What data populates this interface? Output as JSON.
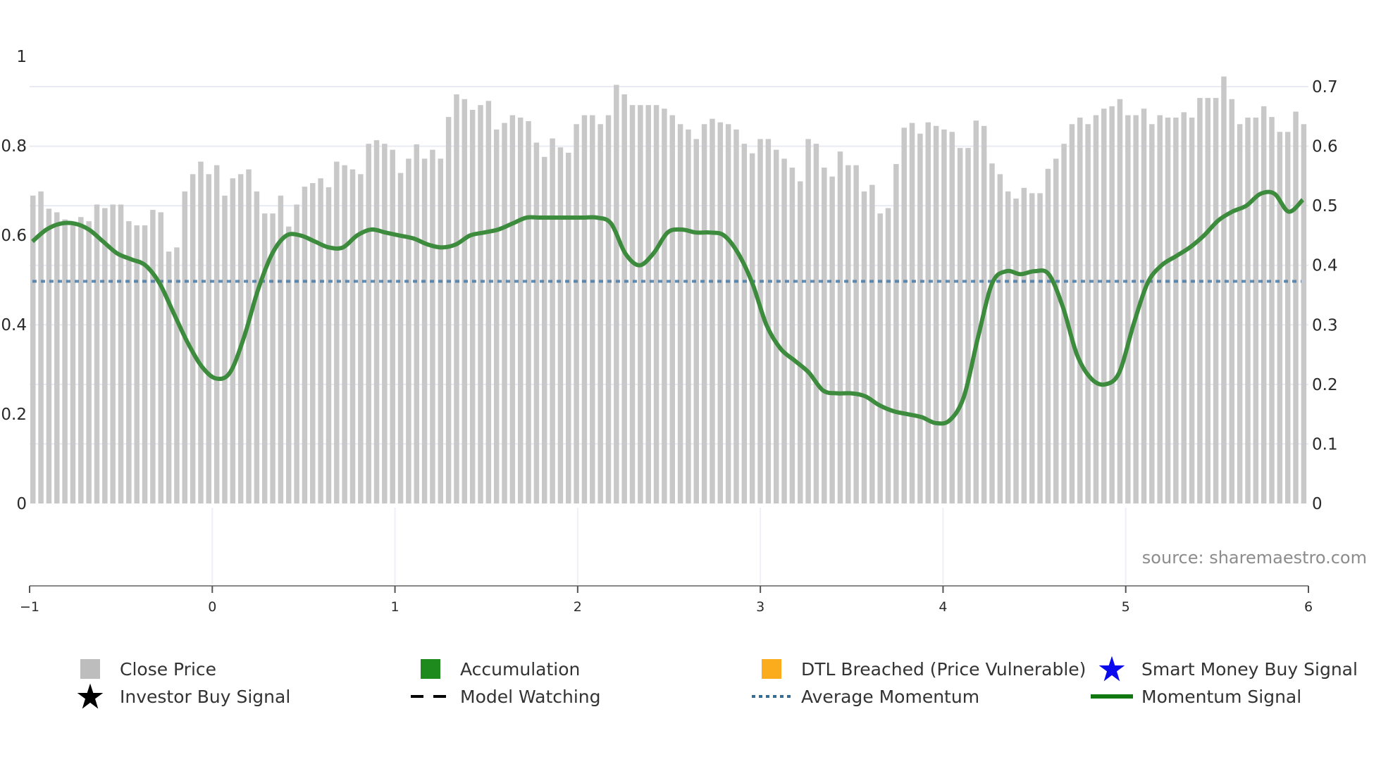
{
  "chart_data": {
    "type": "bar",
    "title": "",
    "xlabel": "",
    "ylabel_left": "",
    "ylabel_right": "",
    "x_ticks": [
      "-1",
      "0",
      "1",
      "2",
      "3",
      "4",
      "5",
      "6"
    ],
    "x_range": [
      -1,
      6
    ],
    "left_y_ticks": [
      "0",
      "0.2",
      "0.4",
      "0.6",
      "0.8",
      "1"
    ],
    "left_y_range": [
      0,
      1
    ],
    "right_y_ticks": [
      "0",
      "0.1",
      "0.2",
      "0.3",
      "0.4",
      "0.5",
      "0.6",
      "0.7"
    ],
    "right_y_range": [
      0,
      0.7
    ],
    "grid": true,
    "legend_position": "bottom",
    "annotation": "source: sharemaestro.com",
    "series": [
      {
        "name": "Close Price",
        "type": "bar",
        "axis": "right",
        "color": "#bdbdbd",
        "values": [
          0.517,
          0.524,
          0.495,
          0.489,
          0.477,
          0.467,
          0.481,
          0.474,
          0.502,
          0.496,
          0.502,
          0.502,
          0.474,
          0.467,
          0.467,
          0.493,
          0.489,
          0.423,
          0.43,
          0.524,
          0.553,
          0.574,
          0.553,
          0.568,
          0.517,
          0.546,
          0.553,
          0.561,
          0.524,
          0.487,
          0.487,
          0.517,
          0.465,
          0.502,
          0.532,
          0.538,
          0.546,
          0.531,
          0.574,
          0.568,
          0.561,
          0.553,
          0.604,
          0.61,
          0.604,
          0.594,
          0.555,
          0.579,
          0.603,
          0.579,
          0.594,
          0.579,
          0.649,
          0.687,
          0.679,
          0.661,
          0.669,
          0.676,
          0.628,
          0.639,
          0.652,
          0.648,
          0.642,
          0.606,
          0.582,
          0.613,
          0.598,
          0.589,
          0.637,
          0.652,
          0.652,
          0.637,
          0.652,
          0.703,
          0.687,
          0.669,
          0.669,
          0.669,
          0.669,
          0.663,
          0.652,
          0.637,
          0.628,
          0.612,
          0.637,
          0.646,
          0.64,
          0.637,
          0.628,
          0.604,
          0.588,
          0.612,
          0.612,
          0.594,
          0.579,
          0.564,
          0.541,
          0.612,
          0.604,
          0.564,
          0.549,
          0.591,
          0.568,
          0.568,
          0.524,
          0.535,
          0.487,
          0.496,
          0.57,
          0.631,
          0.639,
          0.621,
          0.64,
          0.634,
          0.628,
          0.624,
          0.597,
          0.597,
          0.643,
          0.634,
          0.571,
          0.553,
          0.524,
          0.512,
          0.53,
          0.521,
          0.521,
          0.562,
          0.579,
          0.604,
          0.637,
          0.648,
          0.637,
          0.652,
          0.663,
          0.667,
          0.679,
          0.652,
          0.652,
          0.663,
          0.637,
          0.652,
          0.648,
          0.648,
          0.657,
          0.648,
          0.681,
          0.681,
          0.681,
          0.717,
          0.679,
          0.637,
          0.648,
          0.648,
          0.667,
          0.649,
          0.624,
          0.624,
          0.658,
          0.637
        ]
      },
      {
        "name": "Momentum Signal",
        "type": "line",
        "axis": "right",
        "color": "#3a8a3a",
        "values": [
          0.44,
          0.46,
          0.47,
          0.47,
          0.46,
          0.44,
          0.42,
          0.41,
          0.4,
          0.37,
          0.32,
          0.27,
          0.23,
          0.21,
          0.22,
          0.28,
          0.36,
          0.42,
          0.45,
          0.45,
          0.44,
          0.43,
          0.43,
          0.45,
          0.46,
          0.455,
          0.45,
          0.445,
          0.435,
          0.43,
          0.435,
          0.45,
          0.455,
          0.46,
          0.47,
          0.48,
          0.48,
          0.48,
          0.48,
          0.48,
          0.48,
          0.47,
          0.42,
          0.4,
          0.42,
          0.455,
          0.46,
          0.455,
          0.455,
          0.45,
          0.42,
          0.37,
          0.3,
          0.26,
          0.24,
          0.22,
          0.19,
          0.185,
          0.185,
          0.18,
          0.165,
          0.155,
          0.15,
          0.145,
          0.135,
          0.14,
          0.18,
          0.28,
          0.37,
          0.39,
          0.385,
          0.39,
          0.385,
          0.33,
          0.25,
          0.21,
          0.2,
          0.22,
          0.3,
          0.37,
          0.4,
          0.415,
          0.43,
          0.45,
          0.475,
          0.49,
          0.5,
          0.52,
          0.52,
          0.49,
          0.51
        ]
      },
      {
        "name": "Average Momentum",
        "type": "line",
        "axis": "right",
        "color": "#4a7aa8",
        "style": "dotted",
        "values": [
          0.373
        ]
      }
    ],
    "legend": [
      {
        "label": "Close Price",
        "symbol": "square",
        "color": "#bdbdbd"
      },
      {
        "label": "Accumulation",
        "symbol": "square",
        "color": "#1e8a1e"
      },
      {
        "label": "DTL Breached (Price Vulnerable)",
        "symbol": "square",
        "color": "#fbac1c"
      },
      {
        "label": "Smart Money Buy Signal",
        "symbol": "star",
        "color": "#0a0aee"
      },
      {
        "label": "Investor Buy Signal",
        "symbol": "star",
        "color": "#000000"
      },
      {
        "label": "Model Watching",
        "symbol": "dash",
        "color": "#000000"
      },
      {
        "label": "Average Momentum",
        "symbol": "dotted",
        "color": "#2f6f9a"
      },
      {
        "label": "Momentum Signal",
        "symbol": "line",
        "color": "#117711"
      }
    ]
  },
  "axes": {
    "left": [
      "0",
      "0.2",
      "0.4",
      "0.6",
      "0.8",
      "1"
    ],
    "right": [
      "0",
      "0.1",
      "0.2",
      "0.3",
      "0.4",
      "0.5",
      "0.6",
      "0.7"
    ],
    "x": [
      "−1",
      "0",
      "1",
      "2",
      "3",
      "4",
      "5",
      "6"
    ]
  },
  "source": "source: sharemaestro.com",
  "legend": {
    "close_price": "Close Price",
    "accumulation": "Accumulation",
    "dtl_breached": "DTL Breached (Price Vulnerable)",
    "smart_money": "Smart Money Buy Signal",
    "investor_buy": "Investor Buy Signal",
    "model_watching": "Model Watching",
    "average_momentum": "Average Momentum",
    "momentum_signal": "Momentum Signal"
  }
}
